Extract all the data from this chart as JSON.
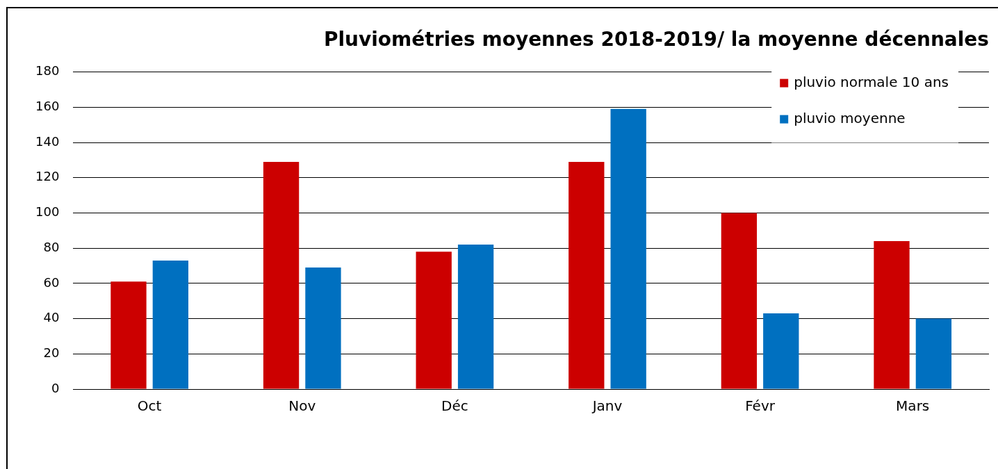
{
  "chart_data": {
    "type": "bar",
    "title": "Pluviométries moyennes 2018-2019/ la moyenne décennales",
    "categories": [
      "Oct",
      "Nov",
      "Déc",
      "Janv",
      "Févr",
      "Mars"
    ],
    "series": [
      {
        "name": "pluvio normale 10 ans",
        "color": "#cc0000",
        "values": [
          61,
          129,
          78,
          129,
          100,
          84
        ]
      },
      {
        "name": "pluvio moyenne",
        "color": "#0070c0",
        "values": [
          73,
          69,
          82,
          159,
          43,
          40
        ]
      }
    ],
    "ylim": [
      0,
      180
    ],
    "yticks": [
      0,
      20,
      40,
      60,
      80,
      100,
      120,
      140,
      160,
      180
    ],
    "grid": "y",
    "legend": "top right"
  }
}
